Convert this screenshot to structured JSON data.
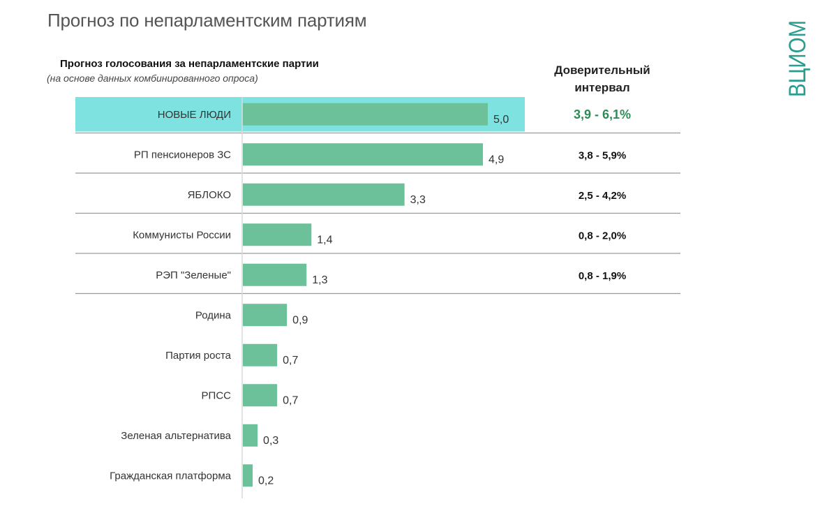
{
  "page": {
    "title": "Прогноз по непарламентским партиям",
    "logo_text": "ВЦИОМ"
  },
  "colors": {
    "bar": "#6dc19a",
    "highlight_row": "#7de2e0",
    "highlight_ci_text": "#2e8b57",
    "logo": "#2a9d8f",
    "separator": "#9a9a9a"
  },
  "chart_data": {
    "type": "bar",
    "orientation": "horizontal",
    "title": "Прогноз голосования за непарламентские партии",
    "subtitle": "(на основе данных комбинированного опроса)",
    "ci_header": "Доверительный интервал",
    "categories": [
      "НОВЫЕ ЛЮДИ",
      "РП пенсионеров ЗС",
      "ЯБЛОКО",
      "Коммунисты России",
      "РЭП \"Зеленые\"",
      "Родина",
      "Партия роста",
      "РПСС",
      "Зеленая альтернатива",
      "Гражданская платформа"
    ],
    "values": [
      5.0,
      4.9,
      3.3,
      1.4,
      1.3,
      0.9,
      0.7,
      0.7,
      0.3,
      0.2
    ],
    "value_labels": [
      "5,0",
      "4,9",
      "3,3",
      "1,4",
      "1,3",
      "0,9",
      "0,7",
      "0,7",
      "0,3",
      "0,2"
    ],
    "confidence_intervals": [
      "3,9 - 6,1%",
      "3,8 - 5,9%",
      "2,5 - 4,2%",
      "0,8 - 2,0%",
      "0,8 - 1,9%",
      null,
      null,
      null,
      null,
      null
    ],
    "highlighted_category": "НОВЫЕ ЛЮДИ",
    "xlim": [
      0,
      5.0
    ],
    "grid": false,
    "legend": "none"
  }
}
